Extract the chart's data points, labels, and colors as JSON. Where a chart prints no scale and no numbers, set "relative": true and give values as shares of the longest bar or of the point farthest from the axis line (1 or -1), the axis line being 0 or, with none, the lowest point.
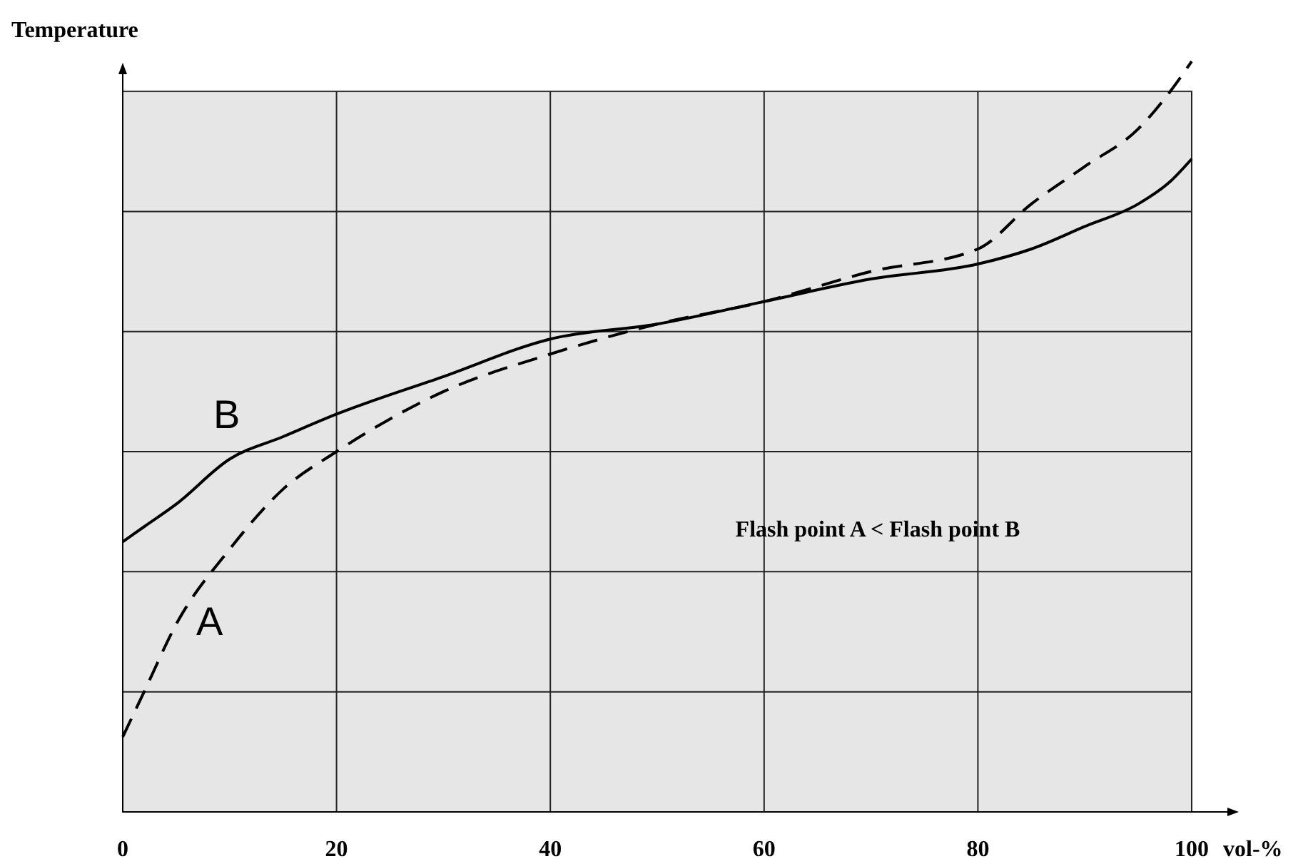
{
  "chart_data": {
    "type": "line",
    "relative": true,
    "ylabel": "Temperature",
    "xlabel": "vol-%",
    "x": [
      0,
      2,
      5,
      10,
      15,
      20,
      30,
      40,
      50,
      60,
      70,
      80,
      85,
      90,
      95,
      98,
      100
    ],
    "xlim": [
      0,
      100
    ],
    "xticks": [
      0,
      20,
      40,
      60,
      80,
      100
    ],
    "grid": true,
    "series": [
      {
        "name": "A",
        "color": "#000000",
        "line_style": "dashed",
        "values": [
          0.1,
          0.16,
          0.25,
          0.35,
          0.43,
          0.48,
          0.56,
          0.61,
          0.65,
          0.68,
          0.72,
          0.75,
          0.81,
          0.86,
          0.91,
          0.96,
          1.0
        ]
      },
      {
        "name": "B",
        "color": "#000000",
        "line_style": "solid",
        "values": [
          0.36,
          0.38,
          0.41,
          0.47,
          0.5,
          0.53,
          0.58,
          0.63,
          0.65,
          0.68,
          0.71,
          0.73,
          0.75,
          0.78,
          0.81,
          0.84,
          0.87
        ]
      }
    ],
    "annotations": [
      "Flash point A < Flash point B"
    ]
  }
}
